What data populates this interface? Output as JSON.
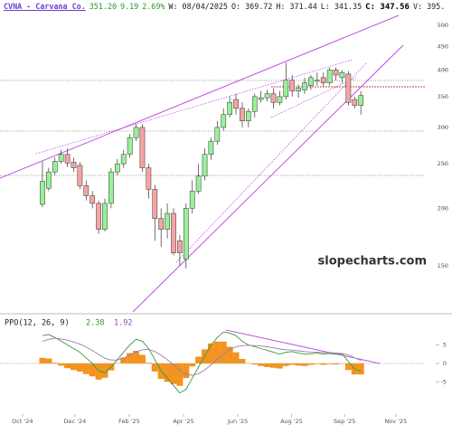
{
  "header": [
    "CVNA - Carvana Co.",
    "351.20",
    "9.19",
    "2.69%",
    "W: 08/04/2025",
    "O: 369.72",
    "H: 371.44",
    "L: 341.35",
    "C: 347.56",
    "V: 395."
  ],
  "watermark": "slopecharts.com",
  "chart_data": [
    {
      "type": "candlestick",
      "log": true,
      "up_color": "#98f098",
      "down_color": "#f5a3a3",
      "open": [
        204,
        221,
        240,
        253,
        262,
        252,
        248,
        224,
        213,
        205,
        180,
        205,
        240,
        250,
        262,
        285,
        300,
        245,
        220,
        190,
        180,
        195,
        170,
        155,
        200,
        218,
        235,
        262,
        280,
        300,
        320,
        345,
        330,
        310,
        325,
        345,
        348,
        355,
        340,
        350,
        380,
        360,
        362,
        370,
        378,
        385,
        375,
        400,
        385,
        392,
        345,
        335
      ],
      "close": [
        229,
        240,
        253,
        262,
        251,
        245,
        224,
        213,
        205,
        180,
        205,
        240,
        250,
        262,
        285,
        300,
        245,
        220,
        190,
        180,
        195,
        160,
        160,
        200,
        218,
        235,
        262,
        280,
        300,
        320,
        340,
        330,
        310,
        325,
        350,
        348,
        355,
        340,
        350,
        380,
        360,
        365,
        375,
        385,
        380,
        375,
        400,
        390,
        395,
        340,
        335,
        352
      ],
      "high": [
        253,
        245,
        258,
        268,
        270,
        258,
        252,
        230,
        218,
        208,
        210,
        245,
        256,
        268,
        290,
        305,
        305,
        250,
        225,
        200,
        205,
        200,
        175,
        205,
        230,
        250,
        270,
        285,
        310,
        330,
        350,
        355,
        340,
        330,
        355,
        360,
        362,
        365,
        360,
        415,
        390,
        372,
        385,
        390,
        395,
        395,
        405,
        405,
        400,
        398,
        350,
        360
      ],
      "low": [
        201,
        218,
        236,
        250,
        246,
        240,
        220,
        208,
        200,
        176,
        178,
        200,
        236,
        245,
        258,
        280,
        240,
        210,
        170,
        165,
        172,
        158,
        150,
        148,
        195,
        215,
        230,
        255,
        275,
        295,
        315,
        320,
        300,
        300,
        315,
        340,
        342,
        330,
        335,
        345,
        350,
        348,
        355,
        362,
        370,
        368,
        370,
        380,
        375,
        335,
        330,
        320
      ],
      "ylim": [
        119,
        568
      ],
      "yticks": [
        150,
        200,
        250,
        300,
        350,
        400,
        450,
        500
      ],
      "xlim": [
        -6.8,
        65.6
      ],
      "xticks": [
        {
          "value": -3.2,
          "label": "Oct '24"
        },
        {
          "value": 5.2,
          "label": "Dec '24"
        },
        {
          "value": 13.9,
          "label": "Feb '25"
        },
        {
          "value": 22.6,
          "label": "Apr '25"
        },
        {
          "value": 31.3,
          "label": "Jun '25"
        },
        {
          "value": 39.9,
          "label": "Aug '25"
        },
        {
          "value": 48.4,
          "label": "Sep '25"
        },
        {
          "value": 56.6,
          "label": "Nov '25"
        }
      ]
    },
    {
      "type": "line",
      "title": "PPO(12, 26, 9)",
      "readings": [
        "2.38",
        "1.92"
      ],
      "series": [
        {
          "color": "#3a9a3a",
          "values": [
            7.5,
            7.8,
            7,
            6,
            5,
            4,
            3,
            1.5,
            0,
            -2,
            -2.5,
            -1,
            1,
            3,
            5,
            6.5,
            6,
            4,
            1,
            -2,
            -4,
            -6,
            -8,
            -7,
            -4,
            -1,
            2,
            5,
            7,
            8.5,
            8.2,
            7.5,
            6,
            5,
            4.5,
            4,
            3.5,
            3,
            2.5,
            3,
            3.2,
            2.8,
            2.5,
            2.6,
            2.8,
            2.5,
            2.7,
            2.5,
            2.6,
            0.5,
            -1.5,
            -2.2
          ]
        },
        {
          "color": "#9a7fb0",
          "values": [
            6,
            6.5,
            6.8,
            6.6,
            6.3,
            5.8,
            5.2,
            4.4,
            3.5,
            2.4,
            1.4,
            0.9,
            0.9,
            1.4,
            2.2,
            3.1,
            3.7,
            3.8,
            3.2,
            2.2,
            1,
            -0.4,
            -1.9,
            -3,
            -3.2,
            -2.8,
            -1.8,
            -0.4,
            1.1,
            2.6,
            3.7,
            4.5,
            4.8,
            4.9,
            4.8,
            4.7,
            4.5,
            4.2,
            3.9,
            3.7,
            3.6,
            3.4,
            3.2,
            3,
            3,
            2.9,
            2.9,
            2.8,
            2.7,
            2.3,
            1.5,
            0.8
          ]
        }
      ],
      "histogram": {
        "color": "#f39320",
        "values": [
          1.5,
          1.3,
          0.2,
          -0.6,
          -1.3,
          -1.8,
          -2.2,
          -2.9,
          -3.5,
          -4.4,
          -3.9,
          -1.9,
          0.1,
          1.6,
          2.8,
          3.4,
          2.3,
          0.2,
          -2.2,
          -4.2,
          -5,
          -5.6,
          -6.1,
          -4,
          -0.8,
          1.8,
          3.8,
          5.4,
          5.9,
          5.9,
          4.5,
          3,
          1.2,
          0.1,
          -0.3,
          -0.7,
          -1,
          -1.2,
          -1.4,
          -0.7,
          -0.4,
          -0.6,
          -0.7,
          -0.4,
          -0.2,
          -0.4,
          -0.2,
          -0.3,
          -0.1,
          -1.8,
          -3,
          -3
        ]
      },
      "ylim": [
        -13,
        12.7
      ],
      "yticks": [
        5,
        0,
        -5
      ]
    }
  ]
}
